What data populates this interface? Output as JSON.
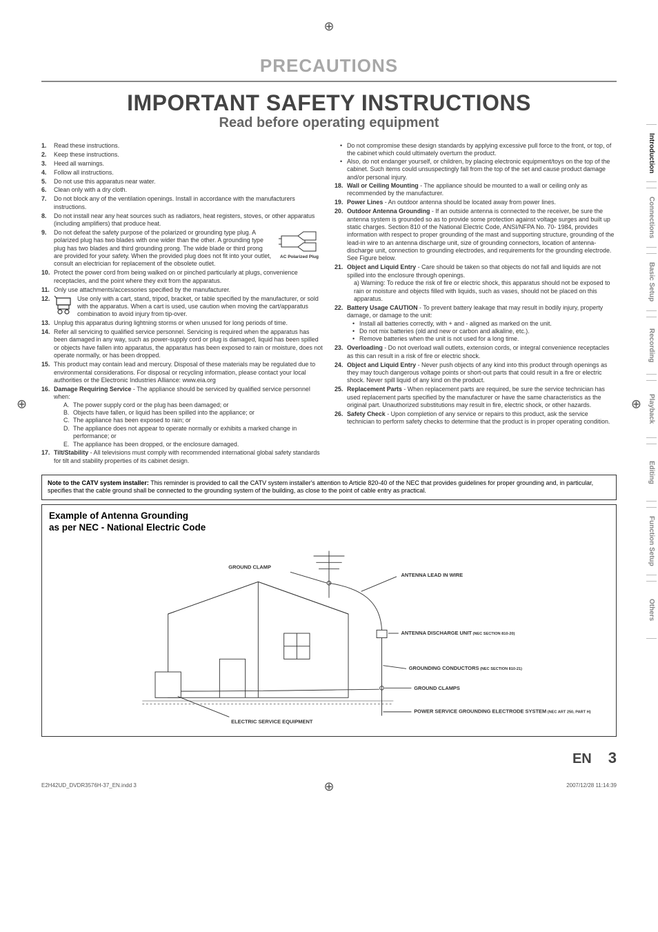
{
  "crops": {
    "glyph": "⊕"
  },
  "titles": {
    "section": "PRECAUTIONS",
    "main": "IMPORTANT SAFETY INSTRUCTIONS",
    "sub": "Read before operating equipment"
  },
  "plug_caption": "AC Polarized Plug",
  "left_items": [
    {
      "n": "1.",
      "t": "",
      "b": "Read these instructions."
    },
    {
      "n": "2.",
      "t": "",
      "b": "Keep these instructions."
    },
    {
      "n": "3.",
      "t": "",
      "b": "Heed all warnings."
    },
    {
      "n": "4.",
      "t": "",
      "b": "Follow all instructions."
    },
    {
      "n": "5.",
      "t": "",
      "b": "Do not use this apparatus near water."
    },
    {
      "n": "6.",
      "t": "",
      "b": "Clean only with a dry cloth."
    },
    {
      "n": "7.",
      "t": "",
      "b": "Do not block any of the ventilation openings. Install in accordance with the manufacturers instructions."
    },
    {
      "n": "8.",
      "t": "",
      "b": "Do not install near any heat sources such as radiators, heat registers, stoves, or other apparatus (including amplifiers) that produce heat."
    },
    {
      "n": "9.",
      "t": "",
      "b": "Do not defeat the safety purpose of the polarized or grounding type plug. A polarized plug has two blades with one wider than the other. A grounding type plug has two blades and third grounding prong. The wide blade or third prong are provided for your safety. When the provided plug does not fit into your outlet, consult an electrician for replacement of the obsolete outlet.",
      "plug": true
    },
    {
      "n": "10.",
      "t": "",
      "b": "Protect the power cord from being walked on or pinched particularly at plugs, convenience receptacles, and the point where they exit from the apparatus."
    },
    {
      "n": "11.",
      "t": "",
      "b": "Only use attachments/accessories specified by the manufacturer."
    },
    {
      "n": "12.",
      "t": "",
      "b": "Use only with a cart, stand, tripod, bracket, or table specified by the manufacturer, or sold with the apparatus. When a cart is used, use caution when moving the cart/apparatus combination to avoid injury from tip-over.",
      "cart": true
    },
    {
      "n": "13.",
      "t": "",
      "b": "Unplug this apparatus during lightning storms or when unused for long periods of time."
    },
    {
      "n": "14.",
      "t": "",
      "b": "Refer all servicing to qualified service personnel. Servicing is required when the apparatus has been damaged in any way, such as power-supply cord or plug is damaged, liquid has been spilled or objects have fallen into apparatus, the apparatus has been exposed to rain or moisture, does not operate normally, or has been dropped."
    },
    {
      "n": "15.",
      "t": "",
      "b": "This product may contain lead and mercury. Disposal of these materials may be regulated due to environmental considerations. For disposal or recycling information, please contact your local authorities or the Electronic Industries Alliance: www.eia.org"
    },
    {
      "n": "16.",
      "t": "Damage Requiring Service",
      "b": " - The appliance should be serviced by qualified service personnel when:",
      "sub": [
        {
          "l": "A.",
          "b": "The power supply cord or the plug has been damaged; or"
        },
        {
          "l": "B.",
          "b": "Objects have fallen, or liquid has been spilled into the appliance; or"
        },
        {
          "l": "C.",
          "b": "The appliance has been exposed to rain; or"
        },
        {
          "l": "D.",
          "b": "The appliance does not appear to operate normally or exhibits a marked change in performance; or"
        },
        {
          "l": "E.",
          "b": "The appliance has been dropped, or the enclosure damaged."
        }
      ]
    },
    {
      "n": "17.",
      "t": "Tilt/Stability",
      "b": " - All televisions must comply with recommended international global safety standards for tilt and stability properties of its cabinet design."
    }
  ],
  "right_pre_bullets": [
    "Do not compromise these design standards by applying excessive pull force to the front, or top, of the cabinet which could ultimately overturn the product.",
    "Also, do not endanger yourself, or children, by placing electronic equipment/toys on the top of the cabinet. Such items could unsuspectingly fall from the top of the set and cause product damage and/or personal injury."
  ],
  "right_items": [
    {
      "n": "18.",
      "t": "Wall or Ceiling Mounting",
      "b": " - The appliance should be mounted to a wall or ceiling only as recommended by the manufacturer."
    },
    {
      "n": "19.",
      "t": "Power Lines",
      "b": " - An outdoor antenna should be located away from power lines."
    },
    {
      "n": "20.",
      "t": "Outdoor Antenna Grounding",
      "b": " - If an outside antenna is connected to the receiver, be sure the antenna system is grounded so as to provide some protection against voltage surges and built up static charges. Section 810 of the National Electric Code, ANSI/NFPA No. 70- 1984, provides information with respect to proper grounding of the mast and supporting structure, grounding of the lead-in wire to an antenna discharge unit, size of grounding connectors, location of antenna-discharge unit, connection to grounding electrodes, and requirements for the grounding electrode. See Figure below."
    },
    {
      "n": "21.",
      "t": "Object and Liquid Entry",
      "b": " - Care should be taken so that objects do not fall and liquids are not spilled into the enclosure through openings.",
      "extra": [
        "a) Warning: To reduce the risk of fire or electric shock, this apparatus should not be exposed to rain or moisture and objects filled with liquids, such as vases, should not be placed on this apparatus."
      ]
    },
    {
      "n": "22.",
      "t": "Battery Usage CAUTION",
      "b": " - To prevent battery leakage that may result in bodily injury, property damage, or damage to the unit:",
      "bullets": [
        "Install all batteries correctly, with + and - aligned as marked on the unit.",
        "Do not mix batteries (old and new or carbon and alkaline, etc.).",
        "Remove batteries when the unit is not used for a long time."
      ]
    },
    {
      "n": "23.",
      "t": "Overloading",
      "b": " - Do not overload wall outlets, extension cords, or integral convenience receptacles as this can result in a risk of fire or electric shock."
    },
    {
      "n": "24.",
      "t": "Object and Liquid Entry",
      "b": " - Never push objects of any kind into this product through openings as they may touch dangerous voltage points or short-out parts that could result in a fire or electric shock. Never spill liquid of any kind on the product."
    },
    {
      "n": "25.",
      "t": "Replacement Parts",
      "b": " - When replacement parts are required, be sure the service technician has used replacement parts specified by the manufacturer or have the same characteristics as the original part. Unauthorized substitutions may result in fire, electric shock, or other hazards."
    },
    {
      "n": "26.",
      "t": "Safety Check",
      "b": " - Upon completion of any service or repairs to this product, ask the service technician to perform safety checks to determine that the product is in proper operating condition."
    }
  ],
  "catv": {
    "title": "Note to the CATV system installer:",
    "body": " This reminder is provided to call the CATV system installer's attention to Article 820-40 of the NEC that provides guidelines for proper grounding and, in particular, specifies that the cable ground shall be connected to the grounding system of the building, as close to the point of cable entry as practical."
  },
  "diagram": {
    "title1": "Example of Antenna Grounding",
    "title2": "as per NEC - National Electric Code",
    "labels": {
      "ground_clamp": "GROUND CLAMP",
      "antenna_leadin": "ANTENNA LEAD IN WIRE",
      "discharge_unit": "ANTENNA DISCHARGE UNIT",
      "discharge_unit_code": " (NEC SECTION 810-20)",
      "grounding_conductors": "GROUNDING CONDUCTORS",
      "grounding_conductors_code": " (NEC SECTION 810-21)",
      "ground_clamps": "GROUND CLAMPS",
      "power_service": "POWER SERVICE GROUNDING ELECTRODE SYSTEM",
      "power_service_code": " (NEC ART 250, PART H)",
      "electric_service": "ELECTRIC SERVICE EQUIPMENT"
    }
  },
  "tabs": [
    "Introduction",
    "Connections",
    "Basic Setup",
    "Recording",
    "Playback",
    "Editing",
    "Function Setup",
    "Others"
  ],
  "active_tab_index": 0,
  "footer": {
    "file": "E2H42UD_DVDR3576H-37_EN.indd   3",
    "lang": "EN",
    "page": "3",
    "timestamp": "2007/12/28   11:14:39"
  }
}
